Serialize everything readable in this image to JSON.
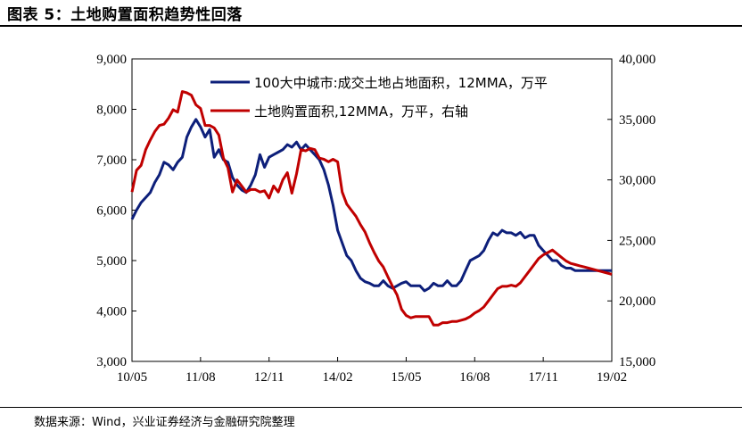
{
  "header": {
    "title": "图表 5：土地购置面积趋势性回落",
    "source": "数据来源：Wind，兴业证券经济与金融研究院整理"
  },
  "colors": {
    "series1": "#0d1f7a",
    "series2": "#c00000",
    "axis": "#000000"
  },
  "chart_data": {
    "type": "line",
    "x_tick_labels": [
      "10/05",
      "11/08",
      "12/11",
      "14/02",
      "15/05",
      "16/08",
      "17/11",
      "19/02"
    ],
    "x_tick_months": [
      0,
      15,
      30,
      45,
      60,
      75,
      90,
      105
    ],
    "y_left": {
      "ticks": [
        "3,000",
        "4,000",
        "5,000",
        "6,000",
        "7,000",
        "8,000",
        "9,000"
      ],
      "range": [
        3000,
        9000
      ]
    },
    "y_right": {
      "ticks": [
        "15,000",
        "20,000",
        "25,000",
        "30,000",
        "35,000",
        "40,000"
      ],
      "range": [
        15000,
        40000
      ]
    },
    "grid": false,
    "legend_position": "top-right",
    "series": [
      {
        "name": "100大中城市:成交土地占地面积，12MMA，万平",
        "axis": "left",
        "x": [
          0,
          1,
          2,
          3,
          4,
          5,
          6,
          7,
          8,
          9,
          10,
          11,
          12,
          13,
          14,
          15,
          16,
          17,
          18,
          19,
          20,
          21,
          22,
          23,
          24,
          25,
          26,
          27,
          28,
          29,
          30,
          31,
          32,
          33,
          34,
          35,
          36,
          37,
          38,
          39,
          40,
          41,
          42,
          43,
          44,
          45,
          46,
          47,
          48,
          49,
          50,
          51,
          52,
          53,
          54,
          55,
          56,
          57,
          58,
          59,
          60,
          61,
          62,
          63,
          64,
          65,
          66,
          67,
          68,
          69,
          70,
          71,
          72,
          73,
          74,
          75,
          76,
          77,
          78,
          79,
          80,
          81,
          82,
          83,
          84,
          85,
          86,
          87,
          88,
          89,
          90,
          91,
          92,
          93,
          94,
          95,
          96,
          97,
          98,
          99,
          100,
          101,
          102,
          103,
          104,
          105
        ],
        "values": [
          5820,
          6000,
          6150,
          6250,
          6350,
          6550,
          6700,
          6950,
          6900,
          6800,
          6950,
          7050,
          7450,
          7650,
          7800,
          7650,
          7450,
          7600,
          7050,
          7200,
          7000,
          6950,
          6650,
          6500,
          6400,
          6350,
          6500,
          6700,
          7100,
          6850,
          7050,
          7100,
          7150,
          7200,
          7300,
          7250,
          7350,
          7200,
          7300,
          7200,
          7100,
          7000,
          6800,
          6500,
          6100,
          5600,
          5350,
          5100,
          5000,
          4800,
          4650,
          4580,
          4550,
          4500,
          4500,
          4600,
          4500,
          4450,
          4500,
          4550,
          4580,
          4500,
          4500,
          4500,
          4400,
          4450,
          4550,
          4500,
          4500,
          4600,
          4500,
          4500,
          4600,
          4800,
          5000,
          5050,
          5100,
          5200,
          5400,
          5550,
          5500,
          5600,
          5550,
          5550,
          5500,
          5560,
          5450,
          5500,
          5500,
          5300,
          5200,
          5100,
          5000,
          5000,
          4900,
          4850,
          4850,
          4800,
          4800,
          4800,
          4800,
          4800,
          4800,
          4800,
          4800,
          4800
        ]
      },
      {
        "name": "土地购置面积,12MMA，万平，右轴",
        "axis": "right",
        "x": [
          0,
          1,
          2,
          3,
          4,
          5,
          6,
          7,
          8,
          9,
          10,
          11,
          12,
          13,
          14,
          15,
          16,
          17,
          18,
          19,
          20,
          21,
          22,
          23,
          24,
          25,
          26,
          27,
          28,
          29,
          30,
          31,
          32,
          33,
          34,
          35,
          36,
          37,
          38,
          39,
          40,
          41,
          42,
          43,
          44,
          45,
          46,
          47,
          48,
          49,
          50,
          51,
          52,
          53,
          54,
          55,
          56,
          57,
          58,
          59,
          60,
          61,
          62,
          63,
          64,
          65,
          66,
          67,
          68,
          69,
          70,
          71,
          72,
          73,
          74,
          75,
          76,
          77,
          78,
          79,
          80,
          81,
          82,
          83,
          84,
          85,
          86,
          87,
          88,
          89,
          90,
          91,
          92,
          93,
          94,
          95,
          96,
          97,
          98,
          99,
          100,
          101,
          102,
          103,
          104,
          105
        ],
        "values": [
          29000,
          30800,
          31200,
          32500,
          33300,
          34000,
          34500,
          34600,
          35100,
          35800,
          35600,
          37300,
          37200,
          37000,
          36200,
          35900,
          34500,
          34500,
          34300,
          33700,
          31800,
          31000,
          29000,
          30000,
          29500,
          29000,
          29200,
          29200,
          29000,
          29100,
          28500,
          29500,
          29000,
          30000,
          30600,
          28900,
          30500,
          32500,
          32400,
          32600,
          32500,
          31800,
          31700,
          31500,
          31700,
          31500,
          29000,
          28000,
          27500,
          27000,
          26300,
          25700,
          24800,
          24000,
          23300,
          22800,
          22000,
          21200,
          20500,
          19300,
          18800,
          18600,
          18700,
          18700,
          18700,
          18700,
          18000,
          18000,
          18200,
          18200,
          18300,
          18300,
          18400,
          18500,
          18700,
          19000,
          19200,
          19500,
          20000,
          20500,
          21000,
          21200,
          21200,
          21300,
          21200,
          21500,
          22000,
          22500,
          23000,
          23500,
          23800,
          24000,
          24200,
          23900,
          23600,
          23300,
          23100,
          23000,
          22900,
          22800,
          22700,
          22600,
          22500,
          22400,
          22300,
          22200
        ]
      }
    ]
  }
}
